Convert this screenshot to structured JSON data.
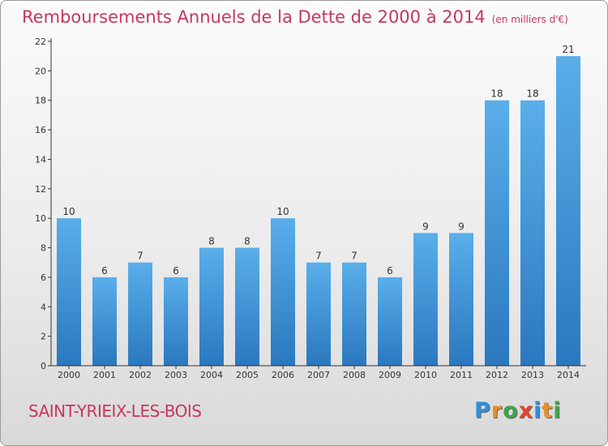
{
  "chart_data": {
    "type": "bar",
    "title": "Remboursements Annuels de la Dette de 2000 à 2014",
    "unit": "(en milliers d'€)",
    "categories": [
      "2000",
      "2001",
      "2002",
      "2003",
      "2004",
      "2005",
      "2006",
      "2007",
      "2008",
      "2009",
      "2010",
      "2011",
      "2012",
      "2013",
      "2014"
    ],
    "values": [
      10,
      6,
      7,
      6,
      8,
      8,
      10,
      7,
      7,
      6,
      9,
      9,
      18,
      18,
      21
    ],
    "ylim": [
      0,
      22
    ],
    "yticks": [
      0,
      2,
      4,
      6,
      8,
      10,
      12,
      14,
      16,
      18,
      20,
      22
    ],
    "grid": false,
    "bar_color": "#3a8fd6"
  },
  "footer": {
    "commune": "SAINT-YRIEIX-LES-BOIS",
    "logo": "Proxiti"
  },
  "colors": {
    "title": "#c8375d",
    "axis": "#333333"
  }
}
